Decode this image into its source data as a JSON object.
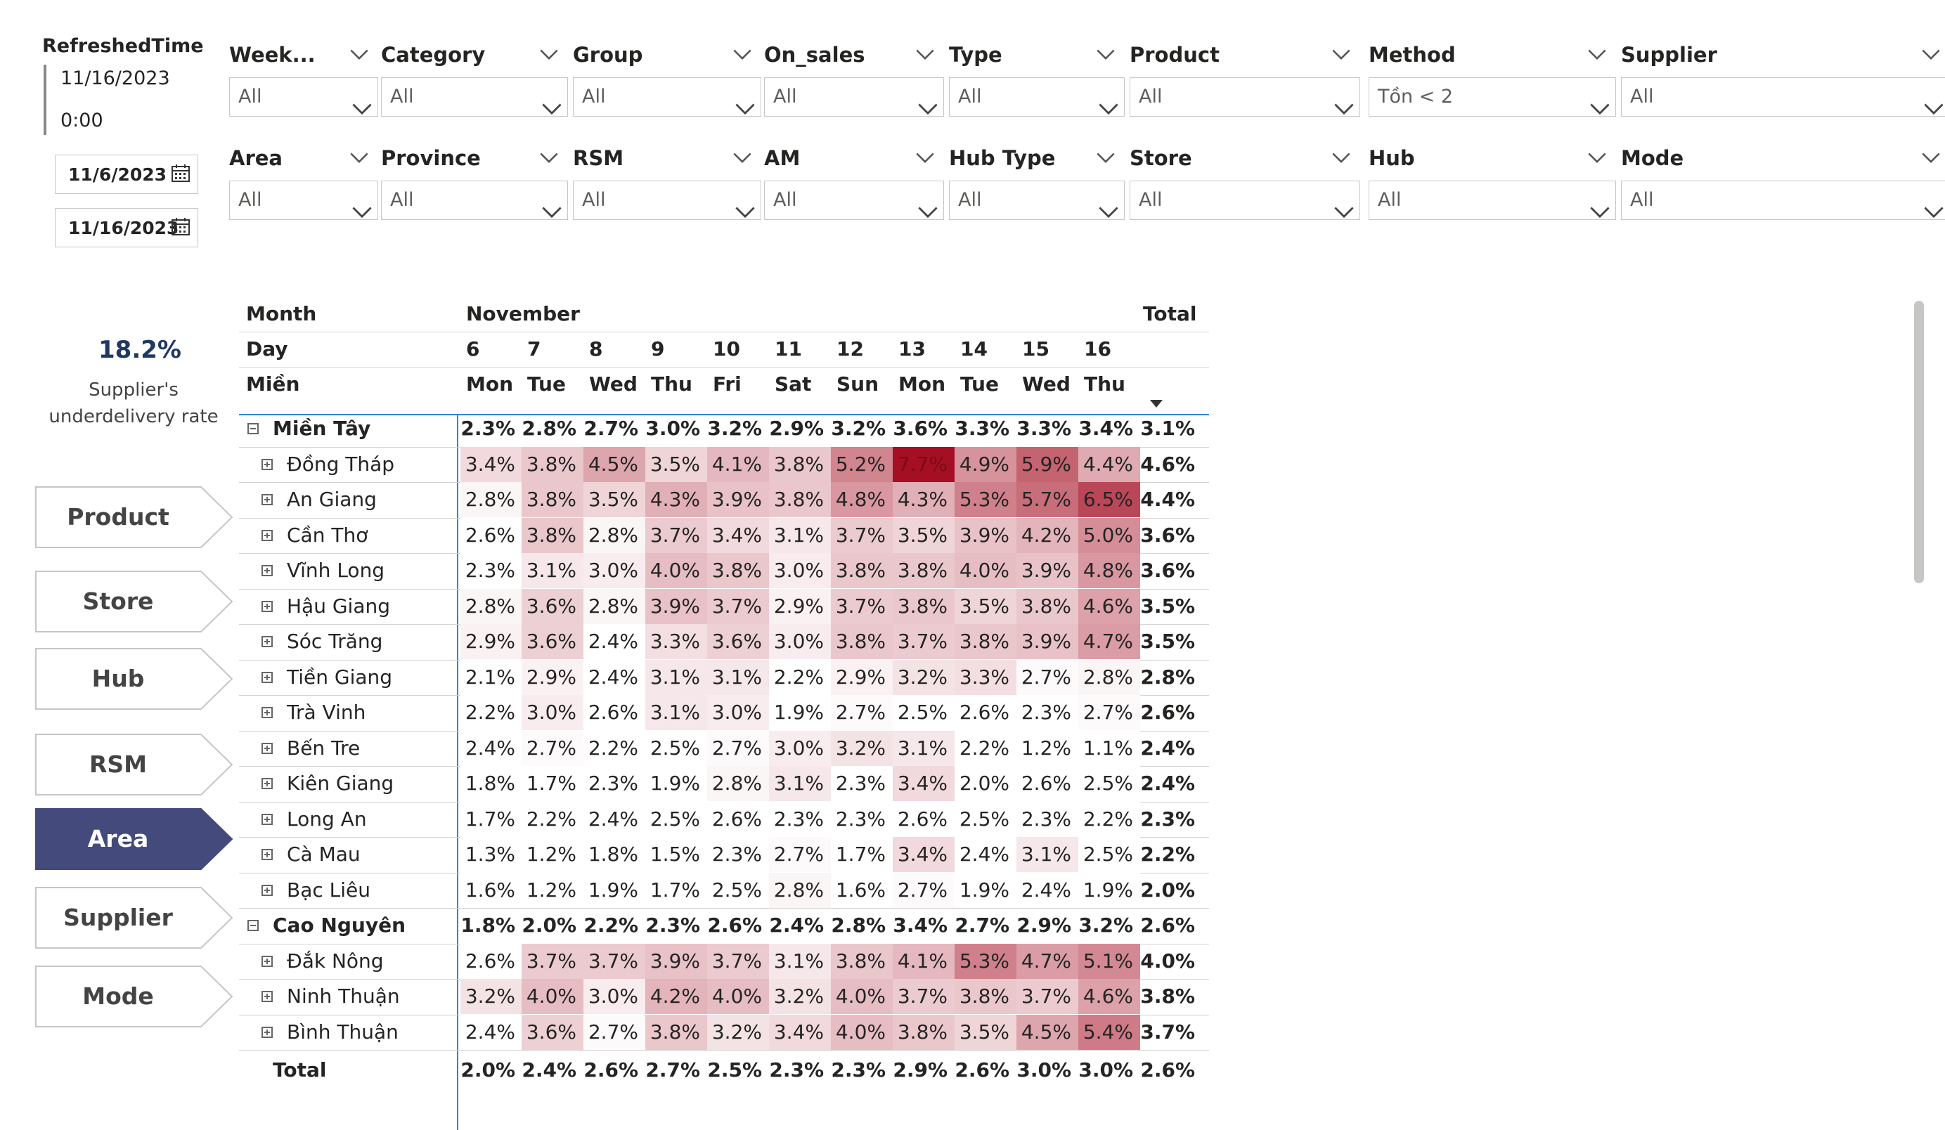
{
  "refresh": {
    "title": "RefreshedTime",
    "date": "11/16/2023",
    "time": "0:00"
  },
  "date_range": {
    "start": "11/6/2023",
    "end": "11/16/2023"
  },
  "slicers": [
    {
      "title": "Week...",
      "value": "All"
    },
    {
      "title": "Category",
      "value": "All"
    },
    {
      "title": "Group",
      "value": "All"
    },
    {
      "title": "On_sales",
      "value": "All"
    },
    {
      "title": "Type",
      "value": "All"
    },
    {
      "title": "Product",
      "value": "All"
    },
    {
      "title": "Method",
      "value": "Tồn < 2"
    },
    {
      "title": "Supplier",
      "value": "All"
    },
    {
      "title": "Area",
      "value": "All"
    },
    {
      "title": "Province",
      "value": "All"
    },
    {
      "title": "RSM",
      "value": "All"
    },
    {
      "title": "AM",
      "value": "All"
    },
    {
      "title": "Hub Type",
      "value": "All"
    },
    {
      "title": "Store",
      "value": "All"
    },
    {
      "title": "Hub",
      "value": "All"
    },
    {
      "title": "Mode",
      "value": "All"
    }
  ],
  "kpi": {
    "value": "18.2%",
    "label_line1": "Supplier's",
    "label_line2": "underdelivery rate"
  },
  "nav": {
    "items": [
      "Product",
      "Store",
      "Hub",
      "RSM",
      "Area",
      "Supplier",
      "Mode"
    ],
    "active": "Area"
  },
  "matrix": {
    "header_labels": {
      "month": "Month",
      "day": "Day",
      "region": "Miền",
      "month_value": "November",
      "total": "Total"
    },
    "days": [
      "6",
      "7",
      "8",
      "9",
      "10",
      "11",
      "12",
      "13",
      "14",
      "15",
      "16"
    ],
    "weekdays": [
      "Mon",
      "Tue",
      "Wed",
      "Thu",
      "Fri",
      "Sat",
      "Sun",
      "Mon",
      "Tue",
      "Wed",
      "Thu"
    ],
    "rows": [
      {
        "label": "Miền Tây",
        "level": 0,
        "values": [
          "2.3%",
          "2.8%",
          "2.7%",
          "3.0%",
          "3.2%",
          "2.9%",
          "3.2%",
          "3.6%",
          "3.3%",
          "3.3%",
          "3.4%"
        ],
        "total": "3.1%"
      },
      {
        "label": "Đồng Tháp",
        "level": 1,
        "values": [
          "3.4%",
          "3.8%",
          "4.5%",
          "3.5%",
          "4.1%",
          "3.8%",
          "5.2%",
          "7.7%",
          "4.9%",
          "5.9%",
          "4.4%"
        ],
        "total": "4.6%"
      },
      {
        "label": "An Giang",
        "level": 1,
        "values": [
          "2.8%",
          "3.8%",
          "3.5%",
          "4.3%",
          "3.9%",
          "3.8%",
          "4.8%",
          "4.3%",
          "5.3%",
          "5.7%",
          "6.5%"
        ],
        "total": "4.4%"
      },
      {
        "label": "Cần Thơ",
        "level": 1,
        "values": [
          "2.6%",
          "3.8%",
          "2.8%",
          "3.7%",
          "3.4%",
          "3.1%",
          "3.7%",
          "3.5%",
          "3.9%",
          "4.2%",
          "5.0%"
        ],
        "total": "3.6%"
      },
      {
        "label": "Vĩnh Long",
        "level": 1,
        "values": [
          "2.3%",
          "3.1%",
          "3.0%",
          "4.0%",
          "3.8%",
          "3.0%",
          "3.8%",
          "3.8%",
          "4.0%",
          "3.9%",
          "4.8%"
        ],
        "total": "3.6%"
      },
      {
        "label": "Hậu Giang",
        "level": 1,
        "values": [
          "2.8%",
          "3.6%",
          "2.8%",
          "3.9%",
          "3.7%",
          "2.9%",
          "3.7%",
          "3.8%",
          "3.5%",
          "3.8%",
          "4.6%"
        ],
        "total": "3.5%"
      },
      {
        "label": "Sóc Trăng",
        "level": 1,
        "values": [
          "2.9%",
          "3.6%",
          "2.4%",
          "3.3%",
          "3.6%",
          "3.0%",
          "3.8%",
          "3.7%",
          "3.8%",
          "3.9%",
          "4.7%"
        ],
        "total": "3.5%"
      },
      {
        "label": "Tiền Giang",
        "level": 1,
        "values": [
          "2.1%",
          "2.9%",
          "2.4%",
          "3.1%",
          "3.1%",
          "2.2%",
          "2.9%",
          "3.2%",
          "3.3%",
          "2.7%",
          "2.8%"
        ],
        "total": "2.8%"
      },
      {
        "label": "Trà Vinh",
        "level": 1,
        "values": [
          "2.2%",
          "3.0%",
          "2.6%",
          "3.1%",
          "3.0%",
          "1.9%",
          "2.7%",
          "2.5%",
          "2.6%",
          "2.3%",
          "2.7%"
        ],
        "total": "2.6%"
      },
      {
        "label": "Bến Tre",
        "level": 1,
        "values": [
          "2.4%",
          "2.7%",
          "2.2%",
          "2.5%",
          "2.7%",
          "3.0%",
          "3.2%",
          "3.1%",
          "2.2%",
          "1.2%",
          "1.1%"
        ],
        "total": "2.4%"
      },
      {
        "label": "Kiên Giang",
        "level": 1,
        "values": [
          "1.8%",
          "1.7%",
          "2.3%",
          "1.9%",
          "2.8%",
          "3.1%",
          "2.3%",
          "3.4%",
          "2.0%",
          "2.6%",
          "2.5%"
        ],
        "total": "2.4%"
      },
      {
        "label": "Long An",
        "level": 1,
        "values": [
          "1.7%",
          "2.2%",
          "2.4%",
          "2.5%",
          "2.6%",
          "2.3%",
          "2.3%",
          "2.6%",
          "2.5%",
          "2.3%",
          "2.2%"
        ],
        "total": "2.3%"
      },
      {
        "label": "Cà Mau",
        "level": 1,
        "values": [
          "1.3%",
          "1.2%",
          "1.8%",
          "1.5%",
          "2.3%",
          "2.7%",
          "1.7%",
          "3.4%",
          "2.4%",
          "3.1%",
          "2.5%"
        ],
        "total": "2.2%"
      },
      {
        "label": "Bạc Liêu",
        "level": 1,
        "values": [
          "1.6%",
          "1.2%",
          "1.9%",
          "1.7%",
          "2.5%",
          "2.8%",
          "1.6%",
          "2.7%",
          "1.9%",
          "2.4%",
          "1.9%"
        ],
        "total": "2.0%"
      },
      {
        "label": "Cao Nguyên",
        "level": 0,
        "values": [
          "1.8%",
          "2.0%",
          "2.2%",
          "2.3%",
          "2.6%",
          "2.4%",
          "2.8%",
          "3.4%",
          "2.7%",
          "2.9%",
          "3.2%"
        ],
        "total": "2.6%"
      },
      {
        "label": "Đắk Nông",
        "level": 1,
        "values": [
          "2.6%",
          "3.7%",
          "3.7%",
          "3.9%",
          "3.7%",
          "3.1%",
          "3.8%",
          "4.1%",
          "5.3%",
          "4.7%",
          "5.1%"
        ],
        "total": "4.0%"
      },
      {
        "label": "Ninh Thuận",
        "level": 1,
        "values": [
          "3.2%",
          "4.0%",
          "3.0%",
          "4.2%",
          "4.0%",
          "3.2%",
          "4.0%",
          "3.7%",
          "3.8%",
          "3.7%",
          "4.6%"
        ],
        "total": "3.8%"
      },
      {
        "label": "Bình Thuận",
        "level": 1,
        "values": [
          "2.4%",
          "3.6%",
          "2.7%",
          "3.8%",
          "3.2%",
          "3.4%",
          "4.0%",
          "3.8%",
          "3.5%",
          "4.5%",
          "5.4%"
        ],
        "total": "3.7%"
      }
    ],
    "total_row": {
      "label": "Total",
      "values": [
        "2.0%",
        "2.4%",
        "2.6%",
        "2.7%",
        "2.5%",
        "2.3%",
        "2.3%",
        "2.9%",
        "2.6%",
        "3.0%",
        "3.0%"
      ],
      "total": "2.6%"
    },
    "heat_colors": {
      "low": "#ffffff",
      "high": "#a50f24"
    }
  }
}
